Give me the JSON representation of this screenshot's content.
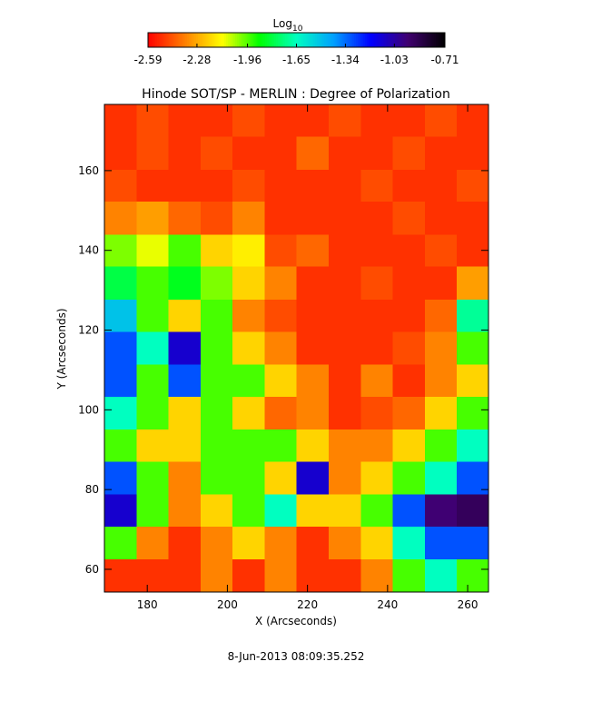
{
  "chart_data": {
    "type": "heatmap",
    "title": "Hinode SOT/SP - MERLIN : Degree of Polarization",
    "x_label": "X (Arcseconds)",
    "y_label": "Y (Arcseconds)",
    "footer": "8-Jun-2013 08:09:35.252",
    "colorbar_title": "Log",
    "colorbar_title_subscript": "10",
    "zlim": [
      -2.59,
      -0.71
    ],
    "zticks": [
      -2.59,
      -2.28,
      -1.96,
      -1.65,
      -1.34,
      -1.03,
      -0.71
    ],
    "colormap": [
      "#ff0000",
      "#ff8000",
      "#ffff00",
      "#00ff00",
      "#00ffc0",
      "#00a0ff",
      "#0000ff",
      "#400070",
      "#000000"
    ],
    "xlim": [
      169.3,
      265.2
    ],
    "ylim": [
      54.3,
      176.6
    ],
    "xticks": [
      180,
      200,
      220,
      240,
      260
    ],
    "yticks": [
      60,
      80,
      100,
      120,
      140,
      160
    ],
    "x": [
      173.3,
      181.3,
      189.3,
      197.3,
      205.3,
      213.3,
      221.3,
      229.3,
      237.3,
      245.3,
      253.3,
      261.3
    ],
    "y": [
      172.5,
      164.4,
      156.2,
      148.1,
      139.9,
      131.8,
      123.6,
      115.5,
      107.3,
      99.2,
      91.0,
      82.9,
      74.7,
      66.6,
      58.4
    ],
    "z": [
      [
        -2.5,
        -2.45,
        -2.5,
        -2.5,
        -2.45,
        -2.5,
        -2.5,
        -2.45,
        -2.5,
        -2.5,
        -2.45,
        -2.5
      ],
      [
        -2.5,
        -2.45,
        -2.5,
        -2.45,
        -2.5,
        -2.5,
        -2.4,
        -2.5,
        -2.5,
        -2.45,
        -2.5,
        -2.5
      ],
      [
        -2.45,
        -2.5,
        -2.5,
        -2.5,
        -2.45,
        -2.5,
        -2.5,
        -2.5,
        -2.45,
        -2.5,
        -2.5,
        -2.45
      ],
      [
        -2.35,
        -2.3,
        -2.4,
        -2.45,
        -2.35,
        -2.5,
        -2.5,
        -2.5,
        -2.5,
        -2.45,
        -2.5,
        -2.5
      ],
      [
        -2.0,
        -2.1,
        -1.95,
        -2.2,
        -2.15,
        -2.45,
        -2.4,
        -2.5,
        -2.5,
        -2.5,
        -2.45,
        -2.5
      ],
      [
        -1.8,
        -1.95,
        -1.85,
        -2.0,
        -2.2,
        -2.35,
        -2.5,
        -2.5,
        -2.45,
        -2.5,
        -2.5,
        -2.3
      ],
      [
        -1.5,
        -1.95,
        -2.2,
        -1.95,
        -2.35,
        -2.45,
        -2.5,
        -2.5,
        -2.5,
        -2.5,
        -2.4,
        -1.7
      ],
      [
        -1.3,
        -1.65,
        -1.1,
        -1.95,
        -2.2,
        -2.35,
        -2.5,
        -2.5,
        -2.5,
        -2.45,
        -2.35,
        -1.95
      ],
      [
        -1.3,
        -1.95,
        -1.3,
        -1.95,
        -1.95,
        -2.2,
        -2.35,
        -2.5,
        -2.35,
        -2.5,
        -2.35,
        -2.2
      ],
      [
        -1.65,
        -1.95,
        -2.2,
        -1.95,
        -2.2,
        -2.4,
        -2.35,
        -2.5,
        -2.45,
        -2.4,
        -2.2,
        -1.95
      ],
      [
        -1.95,
        -2.2,
        -2.2,
        -1.95,
        -1.95,
        -1.95,
        -2.2,
        -2.35,
        -2.35,
        -2.2,
        -1.95,
        -1.65
      ],
      [
        -1.3,
        -1.95,
        -2.35,
        -1.95,
        -1.95,
        -2.2,
        -1.1,
        -2.35,
        -2.2,
        -1.95,
        -1.65,
        -1.3
      ],
      [
        -1.1,
        -1.95,
        -2.35,
        -2.2,
        -1.95,
        -1.65,
        -2.2,
        -2.2,
        -1.95,
        -1.3,
        -0.95,
        -0.9
      ],
      [
        -1.95,
        -2.35,
        -2.5,
        -2.35,
        -2.2,
        -2.35,
        -2.5,
        -2.35,
        -2.2,
        -1.65,
        -1.3,
        -1.3
      ],
      [
        -2.5,
        -2.5,
        -2.5,
        -2.35,
        -2.5,
        -2.35,
        -2.5,
        -2.5,
        -2.35,
        -1.95,
        -1.65,
        -1.95
      ]
    ]
  }
}
